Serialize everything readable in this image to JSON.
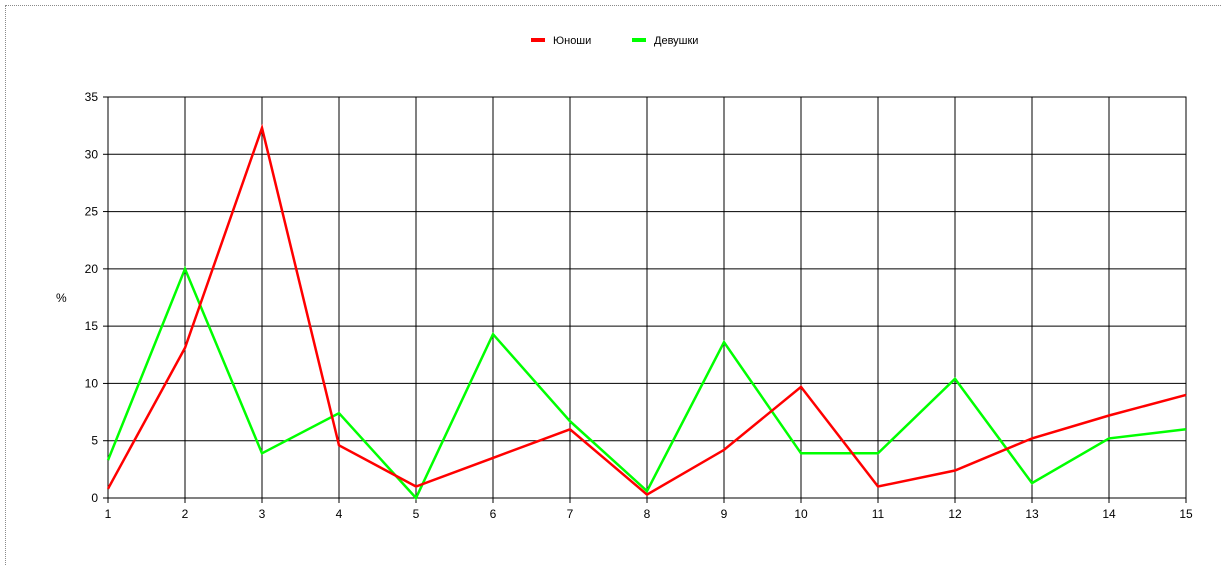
{
  "chart_data": {
    "type": "line",
    "title": "",
    "xlabel": "",
    "ylabel": "%",
    "x": [
      1,
      2,
      3,
      4,
      5,
      6,
      7,
      8,
      9,
      10,
      11,
      12,
      13,
      14,
      15
    ],
    "xlim": [
      1,
      15
    ],
    "ylim": [
      0,
      35
    ],
    "yticks": [
      0,
      5,
      10,
      15,
      20,
      25,
      30,
      35
    ],
    "grid": true,
    "legend_position": "top-center",
    "series": [
      {
        "name": "Юноши",
        "color": "#ff0000",
        "values": [
          0.8,
          13.1,
          32.3,
          4.6,
          1.0,
          3.5,
          6.0,
          0.3,
          4.2,
          9.7,
          1.0,
          2.4,
          5.2,
          7.2,
          9.0
        ]
      },
      {
        "name": "Девушки",
        "color": "#00ff00",
        "values": [
          3.3,
          20.0,
          3.9,
          7.4,
          0.0,
          14.3,
          6.7,
          0.6,
          13.6,
          3.9,
          3.9,
          10.4,
          1.3,
          5.2,
          6.0
        ]
      }
    ]
  }
}
